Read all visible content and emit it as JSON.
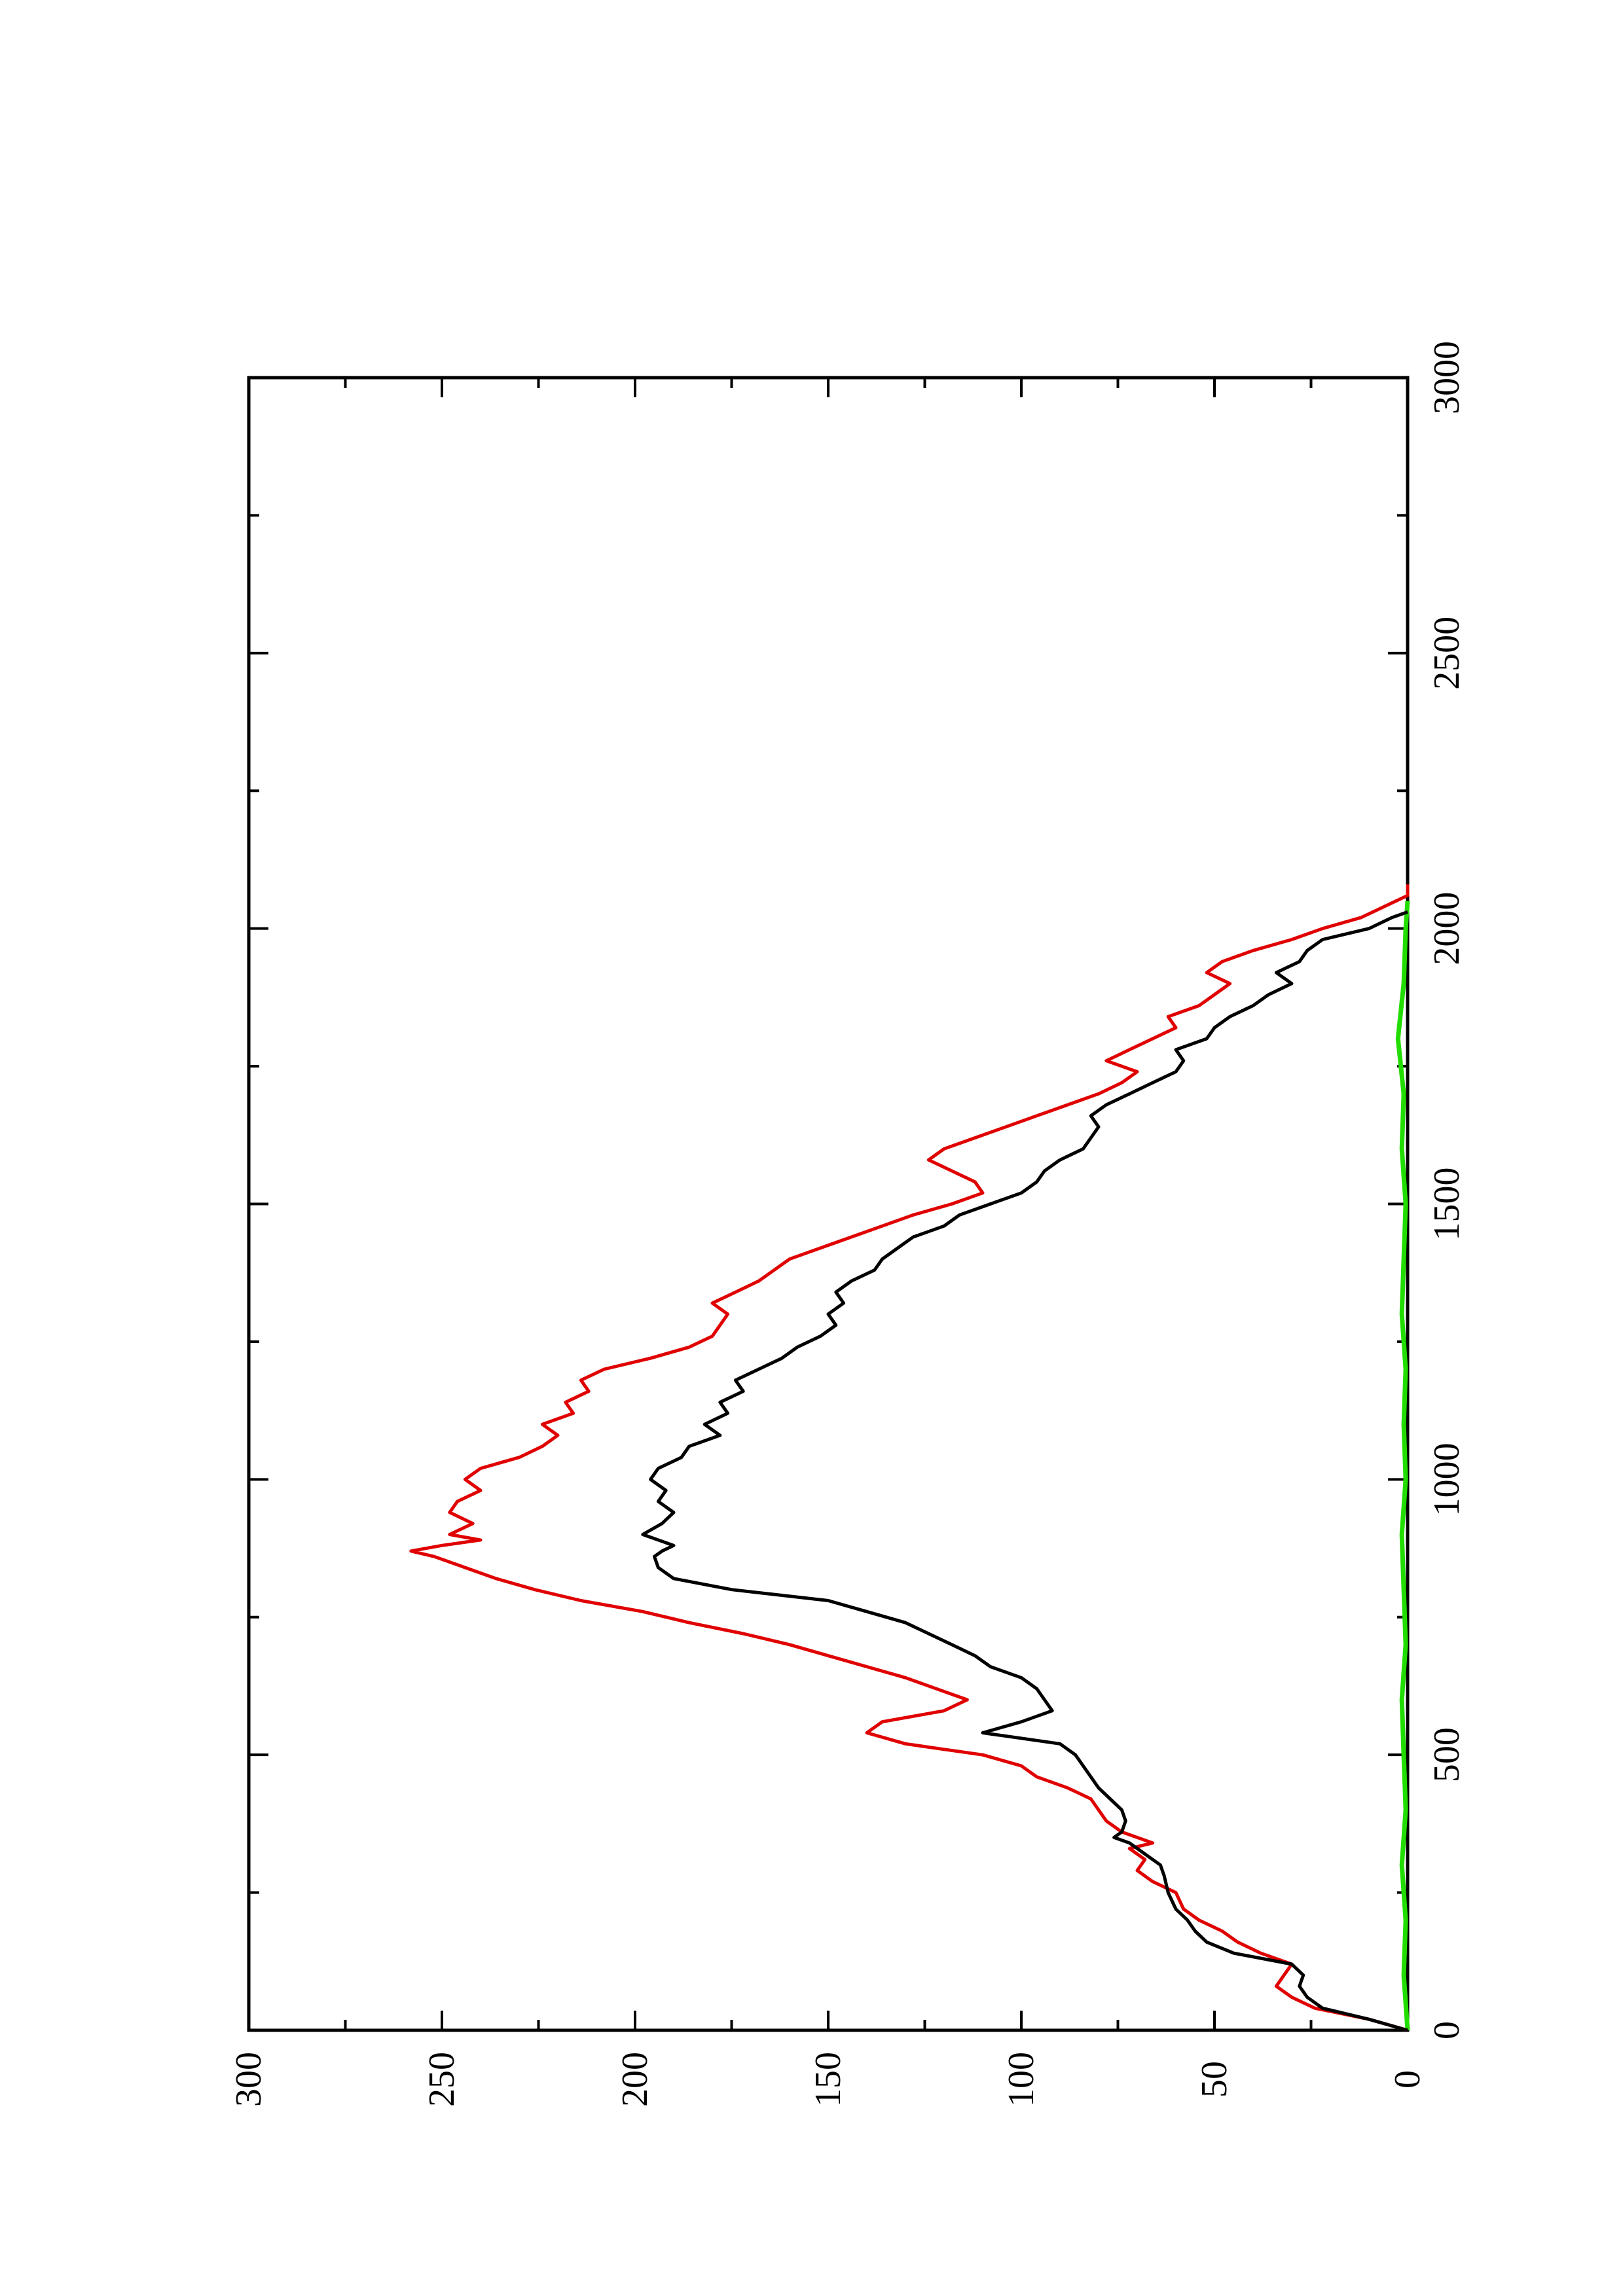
{
  "chart_data": {
    "type": "line",
    "orientation": "rotated-90-ccw",
    "title": "",
    "xlabel": "",
    "ylabel": "",
    "xlim": [
      0,
      3000
    ],
    "ylim": [
      0,
      300
    ],
    "x_ticks": [
      "0",
      "500",
      "1000",
      "1500",
      "2000",
      "2500",
      "3000"
    ],
    "y_ticks": [
      "0",
      "50",
      "100",
      "150",
      "200",
      "250",
      "300"
    ],
    "grid": false,
    "legend": "none",
    "series": [
      {
        "color": "#000000",
        "points": [
          [
            0,
            0
          ],
          [
            20,
            10
          ],
          [
            40,
            22
          ],
          [
            60,
            26
          ],
          [
            80,
            28
          ],
          [
            100,
            27
          ],
          [
            120,
            30
          ],
          [
            140,
            45
          ],
          [
            160,
            52
          ],
          [
            180,
            55
          ],
          [
            200,
            57
          ],
          [
            220,
            60
          ],
          [
            250,
            62
          ],
          [
            280,
            63
          ],
          [
            300,
            64
          ],
          [
            320,
            68
          ],
          [
            340,
            72
          ],
          [
            350,
            76
          ],
          [
            360,
            74
          ],
          [
            380,
            73
          ],
          [
            400,
            74
          ],
          [
            420,
            77
          ],
          [
            440,
            80
          ],
          [
            460,
            82
          ],
          [
            480,
            84
          ],
          [
            500,
            86
          ],
          [
            520,
            90
          ],
          [
            540,
            110
          ],
          [
            560,
            100
          ],
          [
            580,
            92
          ],
          [
            600,
            94
          ],
          [
            620,
            96
          ],
          [
            640,
            100
          ],
          [
            660,
            108
          ],
          [
            680,
            112
          ],
          [
            700,
            118
          ],
          [
            720,
            124
          ],
          [
            740,
            130
          ],
          [
            760,
            140
          ],
          [
            780,
            150
          ],
          [
            800,
            175
          ],
          [
            820,
            190
          ],
          [
            840,
            194
          ],
          [
            860,
            195
          ],
          [
            870,
            193
          ],
          [
            880,
            190
          ],
          [
            900,
            198
          ],
          [
            920,
            193
          ],
          [
            940,
            190
          ],
          [
            960,
            194
          ],
          [
            980,
            192
          ],
          [
            1000,
            196
          ],
          [
            1020,
            194
          ],
          [
            1040,
            188
          ],
          [
            1060,
            186
          ],
          [
            1080,
            178
          ],
          [
            1100,
            182
          ],
          [
            1120,
            176
          ],
          [
            1140,
            178
          ],
          [
            1160,
            172
          ],
          [
            1180,
            174
          ],
          [
            1200,
            168
          ],
          [
            1220,
            162
          ],
          [
            1240,
            158
          ],
          [
            1260,
            152
          ],
          [
            1280,
            148
          ],
          [
            1300,
            150
          ],
          [
            1320,
            146
          ],
          [
            1340,
            148
          ],
          [
            1360,
            144
          ],
          [
            1380,
            138
          ],
          [
            1400,
            136
          ],
          [
            1420,
            132
          ],
          [
            1440,
            128
          ],
          [
            1460,
            120
          ],
          [
            1480,
            116
          ],
          [
            1500,
            108
          ],
          [
            1520,
            100
          ],
          [
            1540,
            96
          ],
          [
            1560,
            94
          ],
          [
            1580,
            90
          ],
          [
            1600,
            84
          ],
          [
            1620,
            82
          ],
          [
            1640,
            80
          ],
          [
            1660,
            82
          ],
          [
            1680,
            78
          ],
          [
            1700,
            72
          ],
          [
            1720,
            66
          ],
          [
            1740,
            60
          ],
          [
            1760,
            58
          ],
          [
            1780,
            60
          ],
          [
            1800,
            52
          ],
          [
            1820,
            50
          ],
          [
            1840,
            46
          ],
          [
            1860,
            40
          ],
          [
            1880,
            36
          ],
          [
            1900,
            30
          ],
          [
            1920,
            34
          ],
          [
            1940,
            28
          ],
          [
            1960,
            26
          ],
          [
            1980,
            22
          ],
          [
            2000,
            10
          ],
          [
            2020,
            4
          ],
          [
            2030,
            0
          ]
        ]
      },
      {
        "color": "#e00000",
        "points": [
          [
            0,
            0
          ],
          [
            20,
            10
          ],
          [
            40,
            24
          ],
          [
            60,
            30
          ],
          [
            80,
            34
          ],
          [
            100,
            32
          ],
          [
            120,
            30
          ],
          [
            140,
            38
          ],
          [
            160,
            44
          ],
          [
            180,
            48
          ],
          [
            200,
            54
          ],
          [
            220,
            58
          ],
          [
            250,
            60
          ],
          [
            270,
            66
          ],
          [
            290,
            70
          ],
          [
            310,
            68
          ],
          [
            330,
            72
          ],
          [
            340,
            66
          ],
          [
            360,
            74
          ],
          [
            380,
            78
          ],
          [
            400,
            80
          ],
          [
            420,
            82
          ],
          [
            440,
            88
          ],
          [
            460,
            96
          ],
          [
            480,
            100
          ],
          [
            500,
            110
          ],
          [
            510,
            120
          ],
          [
            520,
            130
          ],
          [
            540,
            140
          ],
          [
            560,
            136
          ],
          [
            580,
            120
          ],
          [
            600,
            114
          ],
          [
            620,
            122
          ],
          [
            640,
            130
          ],
          [
            660,
            140
          ],
          [
            680,
            150
          ],
          [
            700,
            160
          ],
          [
            720,
            172
          ],
          [
            740,
            186
          ],
          [
            760,
            198
          ],
          [
            780,
            214
          ],
          [
            800,
            226
          ],
          [
            820,
            236
          ],
          [
            840,
            244
          ],
          [
            860,
            252
          ],
          [
            870,
            258
          ],
          [
            880,
            250
          ],
          [
            890,
            240
          ],
          [
            900,
            248
          ],
          [
            920,
            242
          ],
          [
            940,
            248
          ],
          [
            960,
            246
          ],
          [
            980,
            240
          ],
          [
            1000,
            244
          ],
          [
            1020,
            240
          ],
          [
            1040,
            230
          ],
          [
            1060,
            224
          ],
          [
            1080,
            220
          ],
          [
            1100,
            224
          ],
          [
            1120,
            216
          ],
          [
            1140,
            218
          ],
          [
            1160,
            212
          ],
          [
            1180,
            214
          ],
          [
            1200,
            208
          ],
          [
            1220,
            196
          ],
          [
            1240,
            186
          ],
          [
            1260,
            180
          ],
          [
            1280,
            178
          ],
          [
            1300,
            176
          ],
          [
            1320,
            180
          ],
          [
            1340,
            174
          ],
          [
            1360,
            168
          ],
          [
            1380,
            164
          ],
          [
            1400,
            160
          ],
          [
            1420,
            152
          ],
          [
            1440,
            144
          ],
          [
            1460,
            136
          ],
          [
            1480,
            128
          ],
          [
            1500,
            118
          ],
          [
            1520,
            110
          ],
          [
            1540,
            112
          ],
          [
            1560,
            118
          ],
          [
            1580,
            124
          ],
          [
            1600,
            120
          ],
          [
            1620,
            112
          ],
          [
            1640,
            104
          ],
          [
            1660,
            96
          ],
          [
            1680,
            88
          ],
          [
            1700,
            80
          ],
          [
            1720,
            74
          ],
          [
            1740,
            70
          ],
          [
            1760,
            78
          ],
          [
            1780,
            72
          ],
          [
            1800,
            66
          ],
          [
            1820,
            60
          ],
          [
            1840,
            62
          ],
          [
            1860,
            54
          ],
          [
            1880,
            50
          ],
          [
            1900,
            46
          ],
          [
            1920,
            52
          ],
          [
            1940,
            48
          ],
          [
            1960,
            40
          ],
          [
            1980,
            30
          ],
          [
            2000,
            22
          ],
          [
            2020,
            12
          ],
          [
            2040,
            6
          ],
          [
            2060,
            0
          ],
          [
            2080,
            0
          ]
        ]
      },
      {
        "color": "#22dd00",
        "points": [
          [
            0,
            0
          ],
          [
            100,
            1
          ],
          [
            200,
            0.5
          ],
          [
            300,
            1.5
          ],
          [
            400,
            0.5
          ],
          [
            500,
            1
          ],
          [
            600,
            1.5
          ],
          [
            700,
            0.5
          ],
          [
            800,
            1
          ],
          [
            900,
            1.5
          ],
          [
            1000,
            0.5
          ],
          [
            1100,
            1
          ],
          [
            1200,
            0.5
          ],
          [
            1300,
            1.5
          ],
          [
            1400,
            1
          ],
          [
            1500,
            0.5
          ],
          [
            1600,
            1.5
          ],
          [
            1700,
            1
          ],
          [
            1800,
            2.5
          ],
          [
            1900,
            1
          ],
          [
            2000,
            0.5
          ],
          [
            2050,
            0
          ]
        ]
      }
    ]
  }
}
